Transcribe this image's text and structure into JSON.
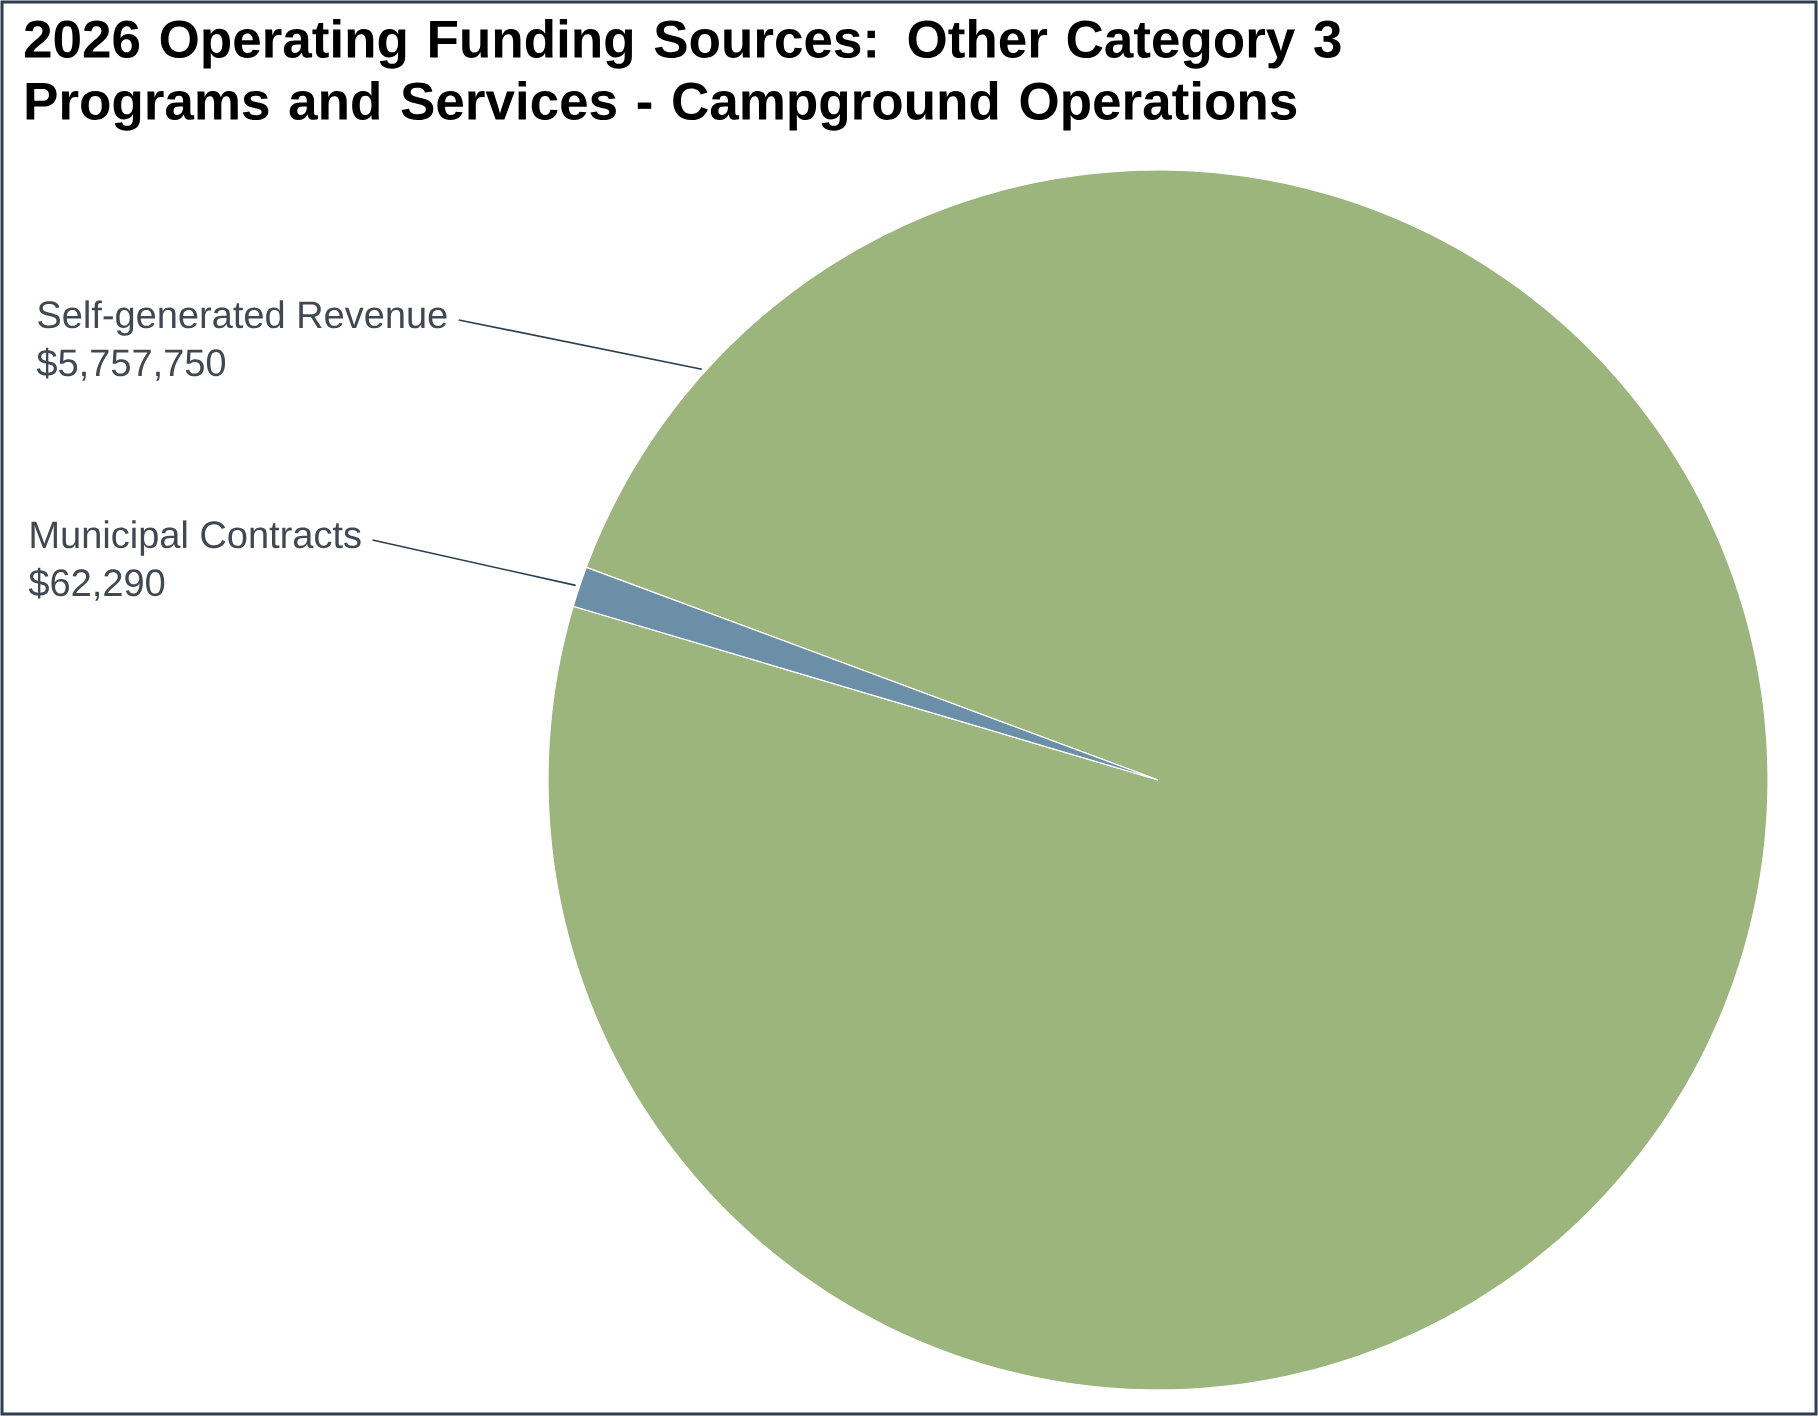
{
  "chart_data": {
    "type": "pie",
    "title": "2026 Operating Funding Sources: Other Category 3 Programs and Services - Campground Operations",
    "categories": [
      "Self-generated Revenue",
      "Municipal Contracts"
    ],
    "values": [
      5757750,
      62290
    ],
    "value_labels": [
      "$5,757,750",
      "$62,290"
    ],
    "colors": [
      "#9bb57d",
      "#6b8fa6"
    ]
  }
}
